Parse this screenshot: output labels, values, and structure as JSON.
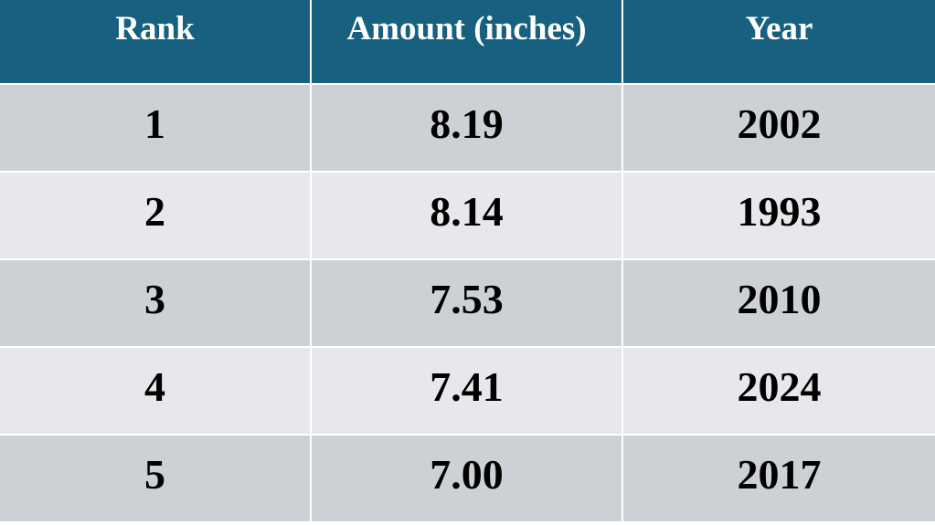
{
  "table": {
    "header": [
      "Rank",
      "Amount (inches)",
      "Year"
    ],
    "rows": [
      [
        "1",
        "8.19",
        "2002"
      ],
      [
        "2",
        "8.14",
        "1993"
      ],
      [
        "3",
        "7.53",
        "2010"
      ],
      [
        "4",
        "7.41",
        "2024"
      ],
      [
        "5",
        "7.00",
        "2017"
      ]
    ]
  }
}
